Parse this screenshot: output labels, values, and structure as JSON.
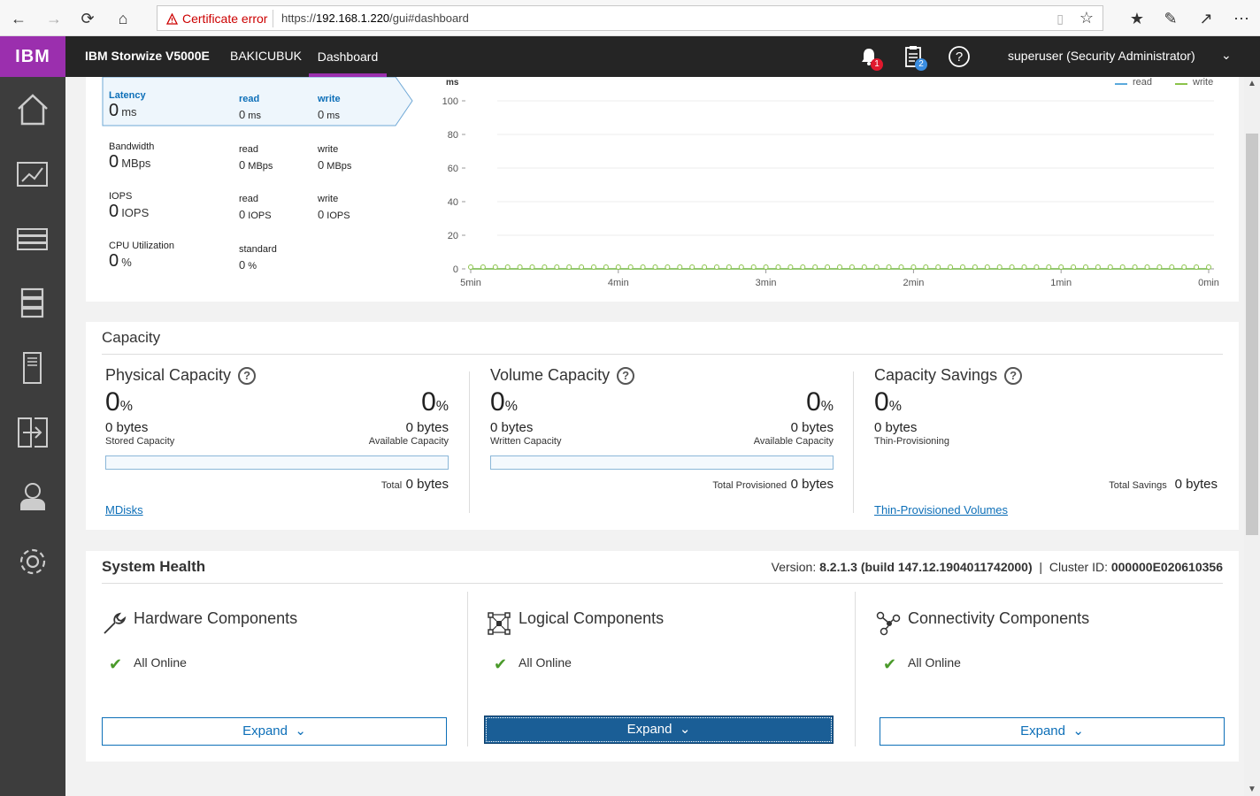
{
  "browser": {
    "cert_error": "Certificate error",
    "url_prefix": "https://",
    "url_host": "192.168.1.220",
    "url_path": "/gui#dashboard"
  },
  "header": {
    "logo": "IBM",
    "product": "IBM Storwize V5000E",
    "system_name": "BAKICUBUK",
    "active_tab": "Dashboard",
    "notifications_count": "1",
    "tasks_count": "2",
    "user": "superuser (Security Administrator)"
  },
  "sidebar": {
    "items": [
      {
        "icon": "home-icon"
      },
      {
        "icon": "monitoring-icon"
      },
      {
        "icon": "pools-icon"
      },
      {
        "icon": "volumes-icon"
      },
      {
        "icon": "hosts-icon"
      },
      {
        "icon": "copy-services-icon"
      },
      {
        "icon": "access-icon"
      },
      {
        "icon": "settings-icon"
      }
    ]
  },
  "performance": {
    "latency": {
      "label": "Latency",
      "value": "0",
      "unit": "ms",
      "read_label": "read",
      "read_value": "0",
      "read_unit": "ms",
      "write_label": "write",
      "write_value": "0",
      "write_unit": "ms"
    },
    "bandwidth": {
      "label": "Bandwidth",
      "value": "0",
      "unit": "MBps",
      "read_label": "read",
      "read_value": "0",
      "read_unit": "MBps",
      "write_label": "write",
      "write_value": "0",
      "write_unit": "MBps"
    },
    "iops": {
      "label": "IOPS",
      "value": "0",
      "unit": "IOPS",
      "read_label": "read",
      "read_value": "0",
      "read_unit": "IOPS",
      "write_label": "write",
      "write_value": "0",
      "write_unit": "IOPS"
    },
    "cpu": {
      "label": "CPU Utilization",
      "value": "0",
      "unit": "%",
      "standard_label": "standard",
      "standard_value": "0",
      "standard_unit": "%"
    }
  },
  "chart_data": {
    "type": "line",
    "ylabel": "ms",
    "ylim": [
      0,
      100
    ],
    "yticks": [
      "100",
      "80",
      "60",
      "40",
      "20",
      "0"
    ],
    "xticks": [
      "5min",
      "4min",
      "3min",
      "2min",
      "1min",
      "0min"
    ],
    "legend_position": "top-right",
    "series": [
      {
        "name": "read",
        "color": "#5aa9dc",
        "values": [
          0,
          0,
          0,
          0,
          0,
          0,
          0,
          0,
          0,
          0,
          0,
          0,
          0,
          0,
          0,
          0,
          0,
          0,
          0,
          0,
          0,
          0,
          0,
          0,
          0,
          0,
          0,
          0,
          0,
          0,
          0,
          0,
          0,
          0,
          0,
          0,
          0,
          0,
          0,
          0,
          0,
          0,
          0,
          0,
          0,
          0,
          0,
          0,
          0,
          0,
          0,
          0,
          0,
          0,
          0,
          0,
          0,
          0,
          0,
          0,
          0
        ]
      },
      {
        "name": "write",
        "color": "#8bc34a",
        "values": [
          0,
          0,
          0,
          0,
          0,
          0,
          0,
          0,
          0,
          0,
          0,
          0,
          0,
          0,
          0,
          0,
          0,
          0,
          0,
          0,
          0,
          0,
          0,
          0,
          0,
          0,
          0,
          0,
          0,
          0,
          0,
          0,
          0,
          0,
          0,
          0,
          0,
          0,
          0,
          0,
          0,
          0,
          0,
          0,
          0,
          0,
          0,
          0,
          0,
          0,
          0,
          0,
          0,
          0,
          0,
          0,
          0,
          0,
          0,
          0,
          0
        ]
      }
    ]
  },
  "capacity": {
    "title": "Capacity",
    "physical": {
      "title": "Physical Capacity",
      "pct": "0",
      "pct_unit": "%",
      "bytes": "0 bytes",
      "sub_label": "Stored Capacity",
      "right_pct": "0",
      "right_bytes": "0 bytes",
      "right_label": "Available Capacity",
      "total_label": "Total",
      "total_value": "0 bytes",
      "link": "MDisks",
      "fill": 0
    },
    "volume": {
      "title": "Volume Capacity",
      "pct": "0",
      "pct_unit": "%",
      "bytes": "0 bytes",
      "sub_label": "Written Capacity",
      "right_pct": "0",
      "right_bytes": "0 bytes",
      "right_label": "Available Capacity",
      "total_label": "Total Provisioned",
      "total_value": "0 bytes",
      "fill": 0
    },
    "savings": {
      "title": "Capacity Savings",
      "pct": "0",
      "pct_unit": "%",
      "bytes": "0 bytes",
      "sub_label": "Thin-Provisioning",
      "total_label": "Total Savings",
      "total_value": "0 bytes",
      "link": "Thin-Provisioned Volumes"
    }
  },
  "health": {
    "title": "System Health",
    "version_label": "Version:",
    "version_value": "8.2.1.3 (build 147.12.1904011742000)",
    "cluster_label": "Cluster ID:",
    "cluster_value": "000000E020610356",
    "hardware": {
      "title": "Hardware Components",
      "status": "All Online",
      "expand": "Expand"
    },
    "logical": {
      "title": "Logical Components",
      "status": "All Online",
      "expand": "Expand"
    },
    "connectivity": {
      "title": "Connectivity Components",
      "status": "All Online",
      "expand": "Expand"
    }
  }
}
